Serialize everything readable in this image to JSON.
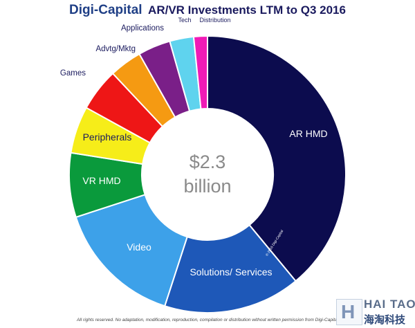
{
  "chart_data": {
    "type": "pie",
    "title_brand": "Digi-Capital",
    "title_rest": "AR/VR Investments LTM to Q3 2016",
    "center_line1": "$2.3",
    "center_line2": "billion",
    "copyright": "© 2016 Digi-Capital",
    "slices": [
      {
        "label": "AR HMD",
        "value": 39.0,
        "color": "#0c0c4e",
        "label_color": "#ffffff"
      },
      {
        "label": "Solutions/ Services",
        "value": 16.0,
        "color": "#1e58b8",
        "label_color": "#ffffff"
      },
      {
        "label": "Video",
        "value": 15.0,
        "color": "#3da1e9",
        "label_color": "#ffffff"
      },
      {
        "label": "VR HMD",
        "value": 7.5,
        "color": "#0a9a3c",
        "label_color": "#ffffff"
      },
      {
        "label": "Peripherals",
        "value": 5.5,
        "color": "#f6ed19",
        "label_color": "#1a1a5e"
      },
      {
        "label": "Games",
        "value": 5.0,
        "color": "#ee1616",
        "label_color": "#1a1a5e"
      },
      {
        "label": "Advtg/Mktg",
        "value": 3.8,
        "color": "#f59a12",
        "label_color": "#1a1a5e"
      },
      {
        "label": "Applications",
        "value": 3.8,
        "color": "#7a1f88",
        "label_color": "#1a1a5e"
      },
      {
        "label": "Tech",
        "value": 2.8,
        "color": "#5fd3ee",
        "label_color": "#1a1a5e"
      },
      {
        "label": "Distribution",
        "value": 1.6,
        "color": "#f01ab6",
        "label_color": "#1a1a5e"
      }
    ]
  },
  "footer_text": "All rights reserved. No adaptation, modification, reproduction, compilation or distribution without written permission from Digi-Capital",
  "watermark": {
    "top": "HAI TAO",
    "bottom": "海淘科技",
    "mark": "H"
  }
}
